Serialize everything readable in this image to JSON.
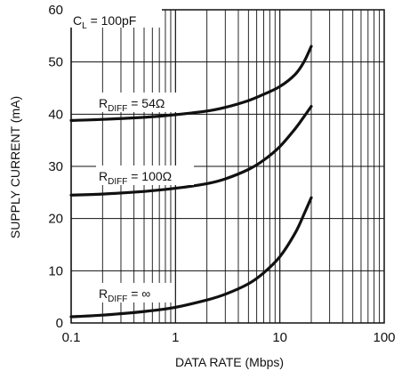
{
  "chart_data": {
    "type": "line",
    "title": "",
    "xlabel": "DATA RATE (Mbps)",
    "ylabel": "SUPPLY CURRENT (mA)",
    "x_scale": "log",
    "xlim": [
      0.1,
      100
    ],
    "ylim": [
      0,
      60
    ],
    "x_ticks": [
      0.1,
      1,
      10,
      100
    ],
    "x_tick_labels": [
      "0.1",
      "1",
      "10",
      "100"
    ],
    "y_ticks": [
      0,
      10,
      20,
      30,
      40,
      50,
      60
    ],
    "y_tick_labels": [
      "0",
      "10",
      "20",
      "30",
      "40",
      "50",
      "60"
    ],
    "grid": true,
    "condition": {
      "main": "C",
      "sub": "L",
      "rest": " = 100pF"
    },
    "series": [
      {
        "label_main": "R",
        "label_sub": "DIFF",
        "label_rest": " = 54Ω",
        "x": [
          0.1,
          0.2,
          0.5,
          1,
          2,
          3,
          5,
          7,
          10,
          14,
          17,
          20
        ],
        "y": [
          38.8,
          39.0,
          39.4,
          39.9,
          40.6,
          41.3,
          42.6,
          43.8,
          45.3,
          47.6,
          50.0,
          53.0
        ]
      },
      {
        "label_main": "R",
        "label_sub": "DIFF",
        "label_rest": " = 100Ω",
        "x": [
          0.1,
          0.2,
          0.5,
          1,
          2,
          3,
          5,
          7,
          10,
          14,
          17,
          20
        ],
        "y": [
          24.5,
          24.7,
          25.2,
          25.8,
          26.7,
          27.6,
          29.4,
          31.2,
          33.8,
          37.2,
          39.5,
          41.5
        ]
      },
      {
        "label_main": "R",
        "label_sub": "DIFF",
        "label_rest": " = ∞",
        "x": [
          0.1,
          0.2,
          0.5,
          1,
          2,
          3,
          5,
          7,
          10,
          14,
          17,
          20
        ],
        "y": [
          1.2,
          1.5,
          2.2,
          3.0,
          4.4,
          5.5,
          7.5,
          9.6,
          12.7,
          17.2,
          20.8,
          24.0
        ]
      }
    ]
  }
}
